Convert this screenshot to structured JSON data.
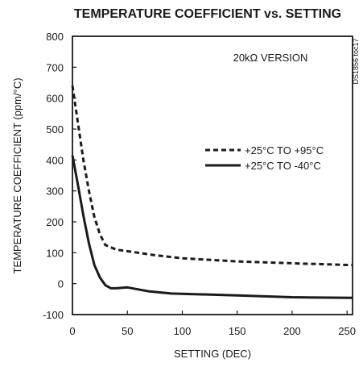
{
  "chart_data": {
    "type": "line",
    "title": "TEMPERATURE COEFFICIENT vs. SETTING",
    "xlabel": "SETTING (DEC)",
    "ylabel": "TEMPERATURE COEFFICIENT (ppm/°C)",
    "xlim": [
      0,
      255
    ],
    "ylim": [
      -100,
      800
    ],
    "x_ticks": [
      "0",
      "50",
      "100",
      "150",
      "200",
      "250"
    ],
    "y_ticks": [
      "800",
      "700",
      "600",
      "500",
      "400",
      "300",
      "200",
      "100",
      "0",
      "-100"
    ],
    "grid": false,
    "annotation": "20kΩ VERSION",
    "side_label": "DS1856 toc17",
    "legend_position": "right",
    "series": [
      {
        "name": "+25°C TO +95°C",
        "style": "dashed",
        "color": "#1a1a1a",
        "points": [
          [
            0,
            640
          ],
          [
            5,
            520
          ],
          [
            10,
            400
          ],
          [
            15,
            300
          ],
          [
            20,
            215
          ],
          [
            25,
            160
          ],
          [
            30,
            125
          ],
          [
            40,
            110
          ],
          [
            50,
            105
          ],
          [
            75,
            92
          ],
          [
            100,
            82
          ],
          [
            150,
            72
          ],
          [
            200,
            66
          ],
          [
            255,
            60
          ]
        ]
      },
      {
        "name": "+25°C TO -40°C",
        "style": "solid",
        "color": "#1a1a1a",
        "points": [
          [
            0,
            415
          ],
          [
            5,
            320
          ],
          [
            10,
            220
          ],
          [
            15,
            130
          ],
          [
            20,
            60
          ],
          [
            25,
            20
          ],
          [
            30,
            -5
          ],
          [
            35,
            -15
          ],
          [
            40,
            -15
          ],
          [
            50,
            -12
          ],
          [
            70,
            -25
          ],
          [
            90,
            -32
          ],
          [
            150,
            -38
          ],
          [
            200,
            -44
          ],
          [
            255,
            -46
          ]
        ]
      }
    ]
  }
}
